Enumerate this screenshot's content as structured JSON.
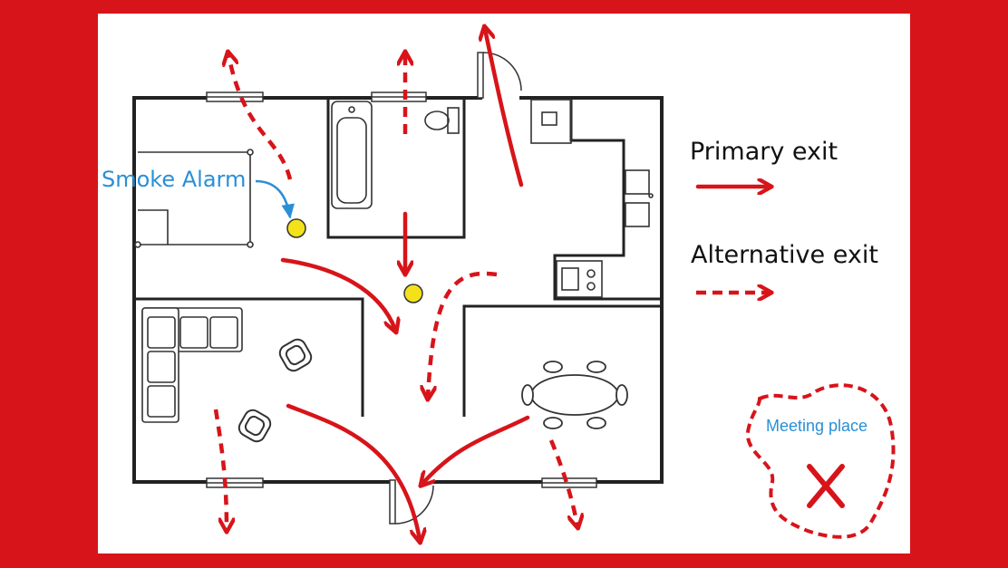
{
  "labels": {
    "smoke_alarm": "Smoke Alarm",
    "primary_exit": "Primary exit",
    "alternative_exit": "Alternative exit",
    "meeting_place": "Meeting place"
  },
  "colors": {
    "frame": "#d7141a",
    "route": "#d7141a",
    "alarm": "#f3e21a",
    "alarm_label": "#2a8fd6",
    "wall": "#222222"
  }
}
